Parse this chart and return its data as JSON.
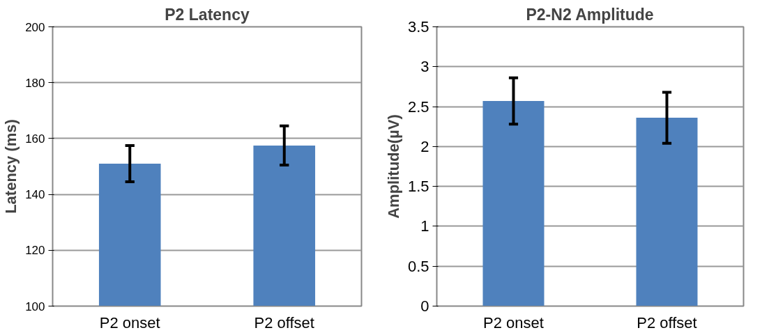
{
  "chart_data": [
    {
      "type": "bar",
      "title": "P2 Latency",
      "ylabel": "Latency (ms)",
      "categories": [
        "P2 onset",
        "P2 offset"
      ],
      "values": [
        151,
        157.5
      ],
      "errors": [
        6.5,
        7
      ],
      "color": "#4f81bd",
      "ylim": [
        100,
        200
      ],
      "yticks": [
        100,
        120,
        140,
        160,
        180,
        200
      ],
      "grid": "y"
    },
    {
      "type": "bar",
      "title": "P2-N2 Amplitude",
      "ylabel": "Amplitude(µV)",
      "categories": [
        "P2 onset",
        "P2 offset"
      ],
      "values": [
        2.57,
        2.36
      ],
      "errors": [
        0.29,
        0.32
      ],
      "color": "#4f81bd",
      "ylim": [
        0,
        3.5
      ],
      "yticks": [
        0,
        0.5,
        1,
        1.5,
        2,
        2.5,
        3,
        3.5
      ],
      "grid": "y"
    }
  ]
}
